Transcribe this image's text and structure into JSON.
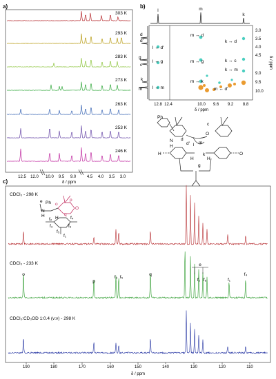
{
  "figure": {
    "panels": {
      "a": "a)",
      "b": "b)",
      "c": "c)"
    }
  },
  "colors": {
    "red": "#b5282c",
    "olive": "#b79a10",
    "lightgreen": "#8cc43c",
    "green": "#32a83c",
    "blue": "#3a66b4",
    "purple": "#6a4aa8",
    "magenta": "#c02aa0",
    "cyan": "#36c9b8",
    "orange": "#e8901a",
    "specgreen": "#2a9a2a",
    "navy": "#1f2fa0"
  },
  "panel_a": {
    "temps": [
      "303 K",
      "293 K",
      "283 K",
      "273 K",
      "263 K",
      "253 K",
      "246 K"
    ],
    "x_ticks": [
      "12.5",
      "12.0",
      "10.0",
      "9.5",
      "9.0",
      "4.5",
      "4.0",
      "3.5",
      "3.0"
    ],
    "x_label": "δ / ppm"
  },
  "panel_b": {
    "x_ticks": [
      "12.8",
      "12.4",
      "10.0",
      "9.6",
      "9.2",
      "8.8"
    ],
    "y_ticks": [
      "3.0",
      "3.5",
      "4.0",
      "4.5",
      "9.0",
      "9.5",
      "10.0"
    ],
    "x_label": "δ / ppm",
    "y_label": "δ / ppm",
    "top_labels": [
      "l",
      "m",
      "k"
    ],
    "left_labels": [
      "d",
      "d'",
      "g",
      "c",
      "k",
      "m"
    ],
    "cross_labels": [
      "l ↔ d'",
      "l ↔ g",
      "l ↔ m",
      "m ↔ d",
      "m ↔ g",
      "m ↔ k",
      "m ↔ d'",
      "k ↔ d",
      "k ↔ c",
      "k ↔ m"
    ],
    "structure_labels": [
      "N",
      "H",
      "O",
      "H",
      "O",
      "Ph",
      "c",
      "d",
      "d'",
      "m",
      "l",
      "k",
      "g",
      "H",
      "H"
    ]
  },
  "panel_c": {
    "spectra": [
      {
        "label": "CDCl₃ - 298 K"
      },
      {
        "label": "CDCl₃ - 233 K"
      },
      {
        "label": "CDCl₃:CD₃OD 1:0.4 (v:v) - 298 K"
      }
    ],
    "peak_labels": [
      "o",
      "p",
      "f₃",
      "f₅",
      "q",
      "e",
      "f₂",
      "f₆",
      "f₁",
      "f₄"
    ],
    "structure_labels": [
      "e",
      "Ph",
      "N",
      "H",
      "o",
      "p",
      "q",
      "O",
      "H",
      "f₂",
      "f₃",
      "f₄",
      "f₅",
      "f₆",
      "f₁"
    ],
    "x_ticks": [
      "190",
      "180",
      "170",
      "160",
      "150",
      "140",
      "130",
      "120",
      "110"
    ],
    "x_label": "δ / ppm"
  }
}
